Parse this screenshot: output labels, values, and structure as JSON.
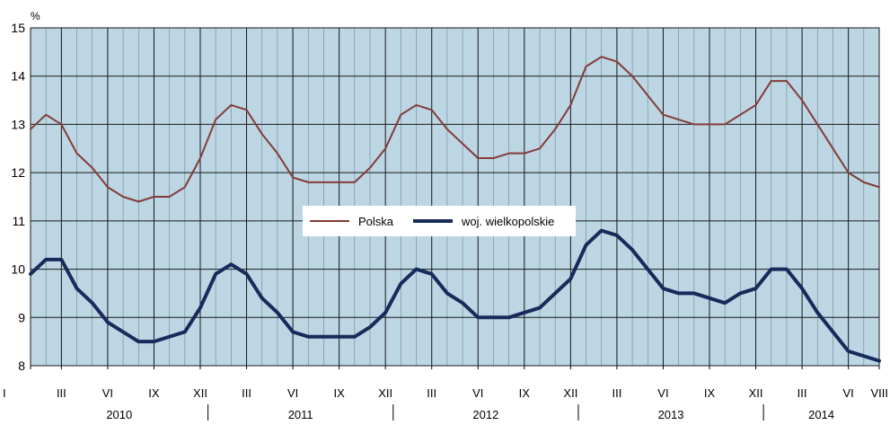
{
  "chart_data": {
    "type": "line",
    "ylabel": "%",
    "ylim": [
      8,
      15
    ],
    "yticks": [
      "8",
      "9",
      "10",
      "11",
      "12",
      "13",
      "14",
      "15"
    ],
    "grid": true,
    "legend_position": "center",
    "month_tick_labels": [
      {
        "index": 0,
        "label": "I"
      },
      {
        "index": 2,
        "label": "III"
      },
      {
        "index": 5,
        "label": "VI"
      },
      {
        "index": 8,
        "label": "IX"
      },
      {
        "index": 11,
        "label": "XII"
      },
      {
        "index": 14,
        "label": "III"
      },
      {
        "index": 17,
        "label": "VI"
      },
      {
        "index": 20,
        "label": "IX"
      },
      {
        "index": 23,
        "label": "XII"
      },
      {
        "index": 26,
        "label": "III"
      },
      {
        "index": 29,
        "label": "VI"
      },
      {
        "index": 32,
        "label": "IX"
      },
      {
        "index": 35,
        "label": "XII"
      },
      {
        "index": 38,
        "label": "III"
      },
      {
        "index": 41,
        "label": "VI"
      },
      {
        "index": 44,
        "label": "IX"
      },
      {
        "index": 47,
        "label": "XII"
      },
      {
        "index": 50,
        "label": "III"
      },
      {
        "index": 53,
        "label": "VI"
      },
      {
        "index": 55,
        "label": "VIII"
      }
    ],
    "years": [
      "2010",
      "2011",
      "2012",
      "2013",
      "2014"
    ],
    "series": [
      {
        "name": "Polska",
        "color": "#843c39",
        "values": [
          12.9,
          13.2,
          13.0,
          12.4,
          12.1,
          11.7,
          11.5,
          11.4,
          11.5,
          11.5,
          11.7,
          12.3,
          13.1,
          13.4,
          13.3,
          12.8,
          12.4,
          11.9,
          11.8,
          11.8,
          11.8,
          11.8,
          12.1,
          12.5,
          13.2,
          13.4,
          13.3,
          12.9,
          12.6,
          12.3,
          12.3,
          12.4,
          12.4,
          12.5,
          12.9,
          13.4,
          14.2,
          14.4,
          14.3,
          14.0,
          13.6,
          13.2,
          13.1,
          13.0,
          13.0,
          13.0,
          13.2,
          13.4,
          13.9,
          13.9,
          13.5,
          13.0,
          12.5,
          12.0,
          11.8,
          11.7
        ]
      },
      {
        "name": "woj. wielkopolskie",
        "color": "#172a5a",
        "values": [
          9.9,
          10.2,
          10.2,
          9.6,
          9.3,
          8.9,
          8.7,
          8.5,
          8.5,
          8.6,
          8.7,
          9.2,
          9.9,
          10.1,
          9.9,
          9.4,
          9.1,
          8.7,
          8.6,
          8.6,
          8.6,
          8.6,
          8.8,
          9.1,
          9.7,
          10.0,
          9.9,
          9.5,
          9.3,
          9.0,
          9.0,
          9.0,
          9.1,
          9.2,
          9.5,
          9.8,
          10.5,
          10.8,
          10.7,
          10.4,
          10.0,
          9.6,
          9.5,
          9.5,
          9.4,
          9.3,
          9.5,
          9.6,
          10.0,
          10.0,
          9.6,
          9.1,
          8.7,
          8.3,
          8.2,
          8.1
        ]
      }
    ]
  },
  "colors": {
    "plot_background": "#bcd6e3",
    "grid": "#1a1a1a"
  }
}
